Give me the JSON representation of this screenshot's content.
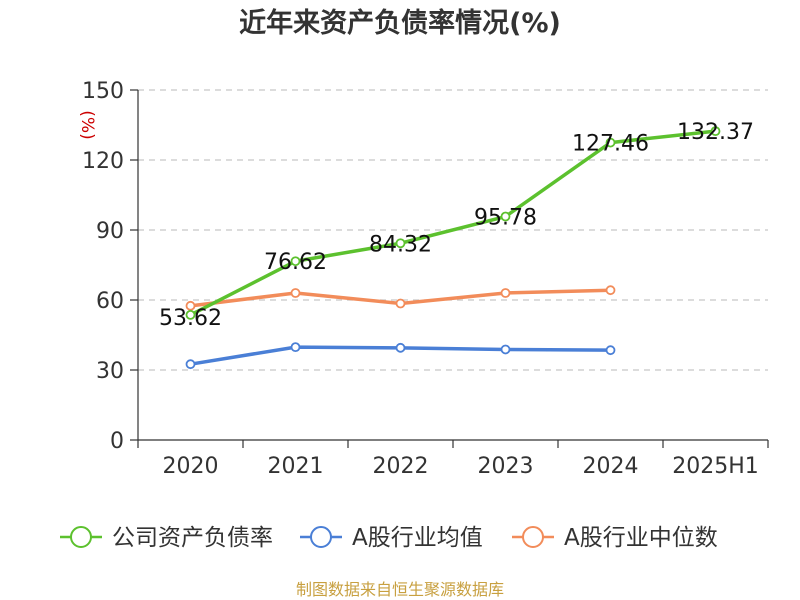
{
  "chart_data": {
    "type": "line",
    "title": "近年来资产负债率情况(%)",
    "ylabel": "(%)",
    "categories": [
      "2020",
      "2021",
      "2022",
      "2023",
      "2024",
      "2025H1"
    ],
    "yticks": [
      0,
      30,
      60,
      90,
      120,
      150
    ],
    "ylim": [
      0,
      150
    ],
    "grid": true,
    "legend_position": "bottom",
    "series": [
      {
        "name": "公司资产负债率",
        "color": "#5cc12e",
        "values": [
          53.62,
          76.62,
          84.32,
          95.78,
          127.46,
          132.37
        ],
        "labels": [
          "53.62",
          "76.62",
          "84.32",
          "95.78",
          "127.46",
          "132.37"
        ]
      },
      {
        "name": "A股行业均值",
        "color": "#4a7fd6",
        "values": [
          32.5,
          39.8,
          39.5,
          38.8,
          38.5,
          null
        ]
      },
      {
        "name": "A股行业中位数",
        "color": "#f28c5a",
        "values": [
          57.5,
          63.0,
          58.5,
          63.0,
          64.2,
          null
        ]
      }
    ]
  },
  "source": "制图数据来自恒生聚源数据库"
}
